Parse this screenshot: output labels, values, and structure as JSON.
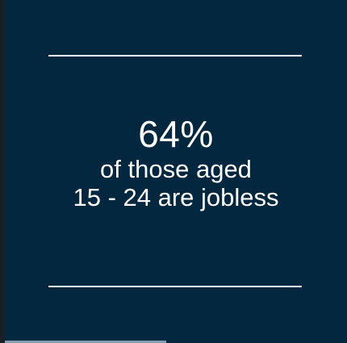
{
  "stat": {
    "value": "64%",
    "line1": "of those aged",
    "line2": "15 - 24 are jobless"
  },
  "colors": {
    "card_background": "#03273f",
    "text": "#ffffff",
    "rule": "#ffffff"
  }
}
